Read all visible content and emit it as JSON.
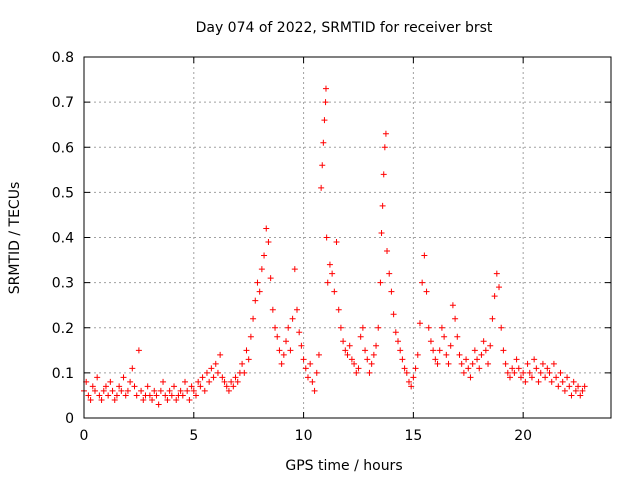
{
  "chart_data": {
    "type": "scatter",
    "title": "Day 074 of 2022, SRMTID for receiver brst",
    "xlabel": "GPS time / hours",
    "ylabel": "SRMTID / TECUs",
    "xlim": [
      0,
      24
    ],
    "ylim": [
      0,
      0.8
    ],
    "xticks": [
      0,
      5,
      10,
      15,
      20
    ],
    "xtick_labels": [
      "0",
      "5",
      "10",
      "15",
      "20"
    ],
    "yticks": [
      0,
      0.1,
      0.2,
      0.3,
      0.4,
      0.5,
      0.6,
      0.7,
      0.8
    ],
    "ytick_labels": [
      "0",
      "0.1",
      "0.2",
      "0.3",
      "0.4",
      "0.5",
      "0.6",
      "0.7",
      "0.8"
    ],
    "grid": true,
    "marker": "+",
    "color": "#ff0000",
    "series": [
      {
        "name": "SRMTID",
        "points": [
          [
            0.0,
            0.06
          ],
          [
            0.1,
            0.08
          ],
          [
            0.2,
            0.05
          ],
          [
            0.3,
            0.04
          ],
          [
            0.4,
            0.07
          ],
          [
            0.5,
            0.06
          ],
          [
            0.6,
            0.09
          ],
          [
            0.7,
            0.05
          ],
          [
            0.8,
            0.04
          ],
          [
            0.9,
            0.06
          ],
          [
            1.0,
            0.07
          ],
          [
            1.1,
            0.05
          ],
          [
            1.2,
            0.08
          ],
          [
            1.3,
            0.06
          ],
          [
            1.4,
            0.04
          ],
          [
            1.5,
            0.05
          ],
          [
            1.6,
            0.07
          ],
          [
            1.7,
            0.06
          ],
          [
            1.8,
            0.09
          ],
          [
            1.9,
            0.05
          ],
          [
            2.0,
            0.06
          ],
          [
            2.1,
            0.08
          ],
          [
            2.2,
            0.11
          ],
          [
            2.3,
            0.07
          ],
          [
            2.4,
            0.05
          ],
          [
            2.5,
            0.15
          ],
          [
            2.6,
            0.06
          ],
          [
            2.7,
            0.04
          ],
          [
            2.8,
            0.05
          ],
          [
            2.9,
            0.07
          ],
          [
            3.0,
            0.05
          ],
          [
            3.1,
            0.04
          ],
          [
            3.2,
            0.06
          ],
          [
            3.3,
            0.05
          ],
          [
            3.4,
            0.03
          ],
          [
            3.5,
            0.06
          ],
          [
            3.6,
            0.08
          ],
          [
            3.7,
            0.05
          ],
          [
            3.8,
            0.04
          ],
          [
            3.9,
            0.06
          ],
          [
            4.0,
            0.05
          ],
          [
            4.1,
            0.07
          ],
          [
            4.2,
            0.04
          ],
          [
            4.3,
            0.05
          ],
          [
            4.4,
            0.06
          ],
          [
            4.5,
            0.05
          ],
          [
            4.6,
            0.08
          ],
          [
            4.7,
            0.06
          ],
          [
            4.8,
            0.04
          ],
          [
            4.9,
            0.07
          ],
          [
            5.0,
            0.06
          ],
          [
            5.1,
            0.05
          ],
          [
            5.2,
            0.08
          ],
          [
            5.3,
            0.07
          ],
          [
            5.4,
            0.09
          ],
          [
            5.5,
            0.06
          ],
          [
            5.6,
            0.1
          ],
          [
            5.7,
            0.08
          ],
          [
            5.8,
            0.11
          ],
          [
            5.9,
            0.09
          ],
          [
            6.0,
            0.12
          ],
          [
            6.1,
            0.1
          ],
          [
            6.2,
            0.14
          ],
          [
            6.3,
            0.09
          ],
          [
            6.4,
            0.08
          ],
          [
            6.5,
            0.07
          ],
          [
            6.6,
            0.06
          ],
          [
            6.7,
            0.08
          ],
          [
            6.8,
            0.07
          ],
          [
            6.9,
            0.09
          ],
          [
            7.0,
            0.08
          ],
          [
            7.1,
            0.1
          ],
          [
            7.2,
            0.12
          ],
          [
            7.3,
            0.1
          ],
          [
            7.4,
            0.15
          ],
          [
            7.5,
            0.13
          ],
          [
            7.6,
            0.18
          ],
          [
            7.7,
            0.22
          ],
          [
            7.8,
            0.26
          ],
          [
            7.9,
            0.3
          ],
          [
            8.0,
            0.28
          ],
          [
            8.1,
            0.33
          ],
          [
            8.2,
            0.36
          ],
          [
            8.3,
            0.42
          ],
          [
            8.4,
            0.39
          ],
          [
            8.5,
            0.31
          ],
          [
            8.6,
            0.24
          ],
          [
            8.7,
            0.2
          ],
          [
            8.8,
            0.18
          ],
          [
            8.9,
            0.15
          ],
          [
            9.0,
            0.12
          ],
          [
            9.1,
            0.14
          ],
          [
            9.2,
            0.17
          ],
          [
            9.3,
            0.2
          ],
          [
            9.4,
            0.15
          ],
          [
            9.5,
            0.22
          ],
          [
            9.6,
            0.33
          ],
          [
            9.7,
            0.24
          ],
          [
            9.8,
            0.19
          ],
          [
            9.9,
            0.16
          ],
          [
            10.0,
            0.13
          ],
          [
            10.1,
            0.11
          ],
          [
            10.2,
            0.09
          ],
          [
            10.3,
            0.12
          ],
          [
            10.4,
            0.08
          ],
          [
            10.5,
            0.06
          ],
          [
            10.6,
            0.1
          ],
          [
            10.7,
            0.14
          ],
          [
            10.8,
            0.51
          ],
          [
            10.85,
            0.56
          ],
          [
            10.9,
            0.61
          ],
          [
            10.95,
            0.66
          ],
          [
            11.0,
            0.7
          ],
          [
            11.02,
            0.73
          ],
          [
            11.05,
            0.4
          ],
          [
            11.1,
            0.3
          ],
          [
            11.2,
            0.34
          ],
          [
            11.3,
            0.32
          ],
          [
            11.4,
            0.28
          ],
          [
            11.5,
            0.39
          ],
          [
            11.6,
            0.24
          ],
          [
            11.7,
            0.2
          ],
          [
            11.8,
            0.17
          ],
          [
            11.9,
            0.15
          ],
          [
            12.0,
            0.14
          ],
          [
            12.1,
            0.16
          ],
          [
            12.2,
            0.13
          ],
          [
            12.3,
            0.12
          ],
          [
            12.4,
            0.1
          ],
          [
            12.5,
            0.11
          ],
          [
            12.6,
            0.18
          ],
          [
            12.7,
            0.2
          ],
          [
            12.8,
            0.15
          ],
          [
            12.9,
            0.13
          ],
          [
            13.0,
            0.1
          ],
          [
            13.1,
            0.12
          ],
          [
            13.2,
            0.14
          ],
          [
            13.3,
            0.16
          ],
          [
            13.4,
            0.2
          ],
          [
            13.5,
            0.3
          ],
          [
            13.55,
            0.41
          ],
          [
            13.6,
            0.47
          ],
          [
            13.65,
            0.54
          ],
          [
            13.7,
            0.6
          ],
          [
            13.75,
            0.63
          ],
          [
            13.8,
            0.37
          ],
          [
            13.9,
            0.32
          ],
          [
            14.0,
            0.28
          ],
          [
            14.1,
            0.23
          ],
          [
            14.2,
            0.19
          ],
          [
            14.3,
            0.17
          ],
          [
            14.4,
            0.15
          ],
          [
            14.5,
            0.13
          ],
          [
            14.6,
            0.11
          ],
          [
            14.7,
            0.1
          ],
          [
            14.8,
            0.08
          ],
          [
            14.9,
            0.07
          ],
          [
            15.0,
            0.09
          ],
          [
            15.1,
            0.11
          ],
          [
            15.2,
            0.14
          ],
          [
            15.3,
            0.21
          ],
          [
            15.4,
            0.3
          ],
          [
            15.5,
            0.36
          ],
          [
            15.6,
            0.28
          ],
          [
            15.7,
            0.2
          ],
          [
            15.8,
            0.17
          ],
          [
            15.9,
            0.15
          ],
          [
            16.0,
            0.13
          ],
          [
            16.1,
            0.12
          ],
          [
            16.2,
            0.15
          ],
          [
            16.3,
            0.2
          ],
          [
            16.4,
            0.18
          ],
          [
            16.5,
            0.14
          ],
          [
            16.6,
            0.12
          ],
          [
            16.7,
            0.16
          ],
          [
            16.8,
            0.25
          ],
          [
            16.9,
            0.22
          ],
          [
            17.0,
            0.18
          ],
          [
            17.1,
            0.14
          ],
          [
            17.2,
            0.12
          ],
          [
            17.3,
            0.1
          ],
          [
            17.4,
            0.13
          ],
          [
            17.5,
            0.11
          ],
          [
            17.6,
            0.09
          ],
          [
            17.7,
            0.12
          ],
          [
            17.8,
            0.15
          ],
          [
            17.9,
            0.13
          ],
          [
            18.0,
            0.11
          ],
          [
            18.1,
            0.14
          ],
          [
            18.2,
            0.17
          ],
          [
            18.3,
            0.15
          ],
          [
            18.4,
            0.12
          ],
          [
            18.5,
            0.16
          ],
          [
            18.6,
            0.22
          ],
          [
            18.7,
            0.27
          ],
          [
            18.8,
            0.32
          ],
          [
            18.9,
            0.29
          ],
          [
            19.0,
            0.2
          ],
          [
            19.1,
            0.15
          ],
          [
            19.2,
            0.12
          ],
          [
            19.3,
            0.1
          ],
          [
            19.4,
            0.09
          ],
          [
            19.5,
            0.11
          ],
          [
            19.6,
            0.1
          ],
          [
            19.7,
            0.13
          ],
          [
            19.8,
            0.11
          ],
          [
            19.9,
            0.09
          ],
          [
            20.0,
            0.1
          ],
          [
            20.1,
            0.08
          ],
          [
            20.2,
            0.12
          ],
          [
            20.3,
            0.1
          ],
          [
            20.4,
            0.09
          ],
          [
            20.5,
            0.13
          ],
          [
            20.6,
            0.11
          ],
          [
            20.7,
            0.08
          ],
          [
            20.8,
            0.1
          ],
          [
            20.9,
            0.12
          ],
          [
            21.0,
            0.09
          ],
          [
            21.1,
            0.11
          ],
          [
            21.2,
            0.1
          ],
          [
            21.3,
            0.08
          ],
          [
            21.4,
            0.12
          ],
          [
            21.5,
            0.09
          ],
          [
            21.6,
            0.07
          ],
          [
            21.7,
            0.1
          ],
          [
            21.8,
            0.08
          ],
          [
            21.9,
            0.06
          ],
          [
            22.0,
            0.09
          ],
          [
            22.1,
            0.07
          ],
          [
            22.2,
            0.05
          ],
          [
            22.3,
            0.08
          ],
          [
            22.4,
            0.06
          ],
          [
            22.5,
            0.07
          ],
          [
            22.6,
            0.05
          ],
          [
            22.7,
            0.06
          ],
          [
            22.8,
            0.07
          ]
        ]
      }
    ]
  }
}
